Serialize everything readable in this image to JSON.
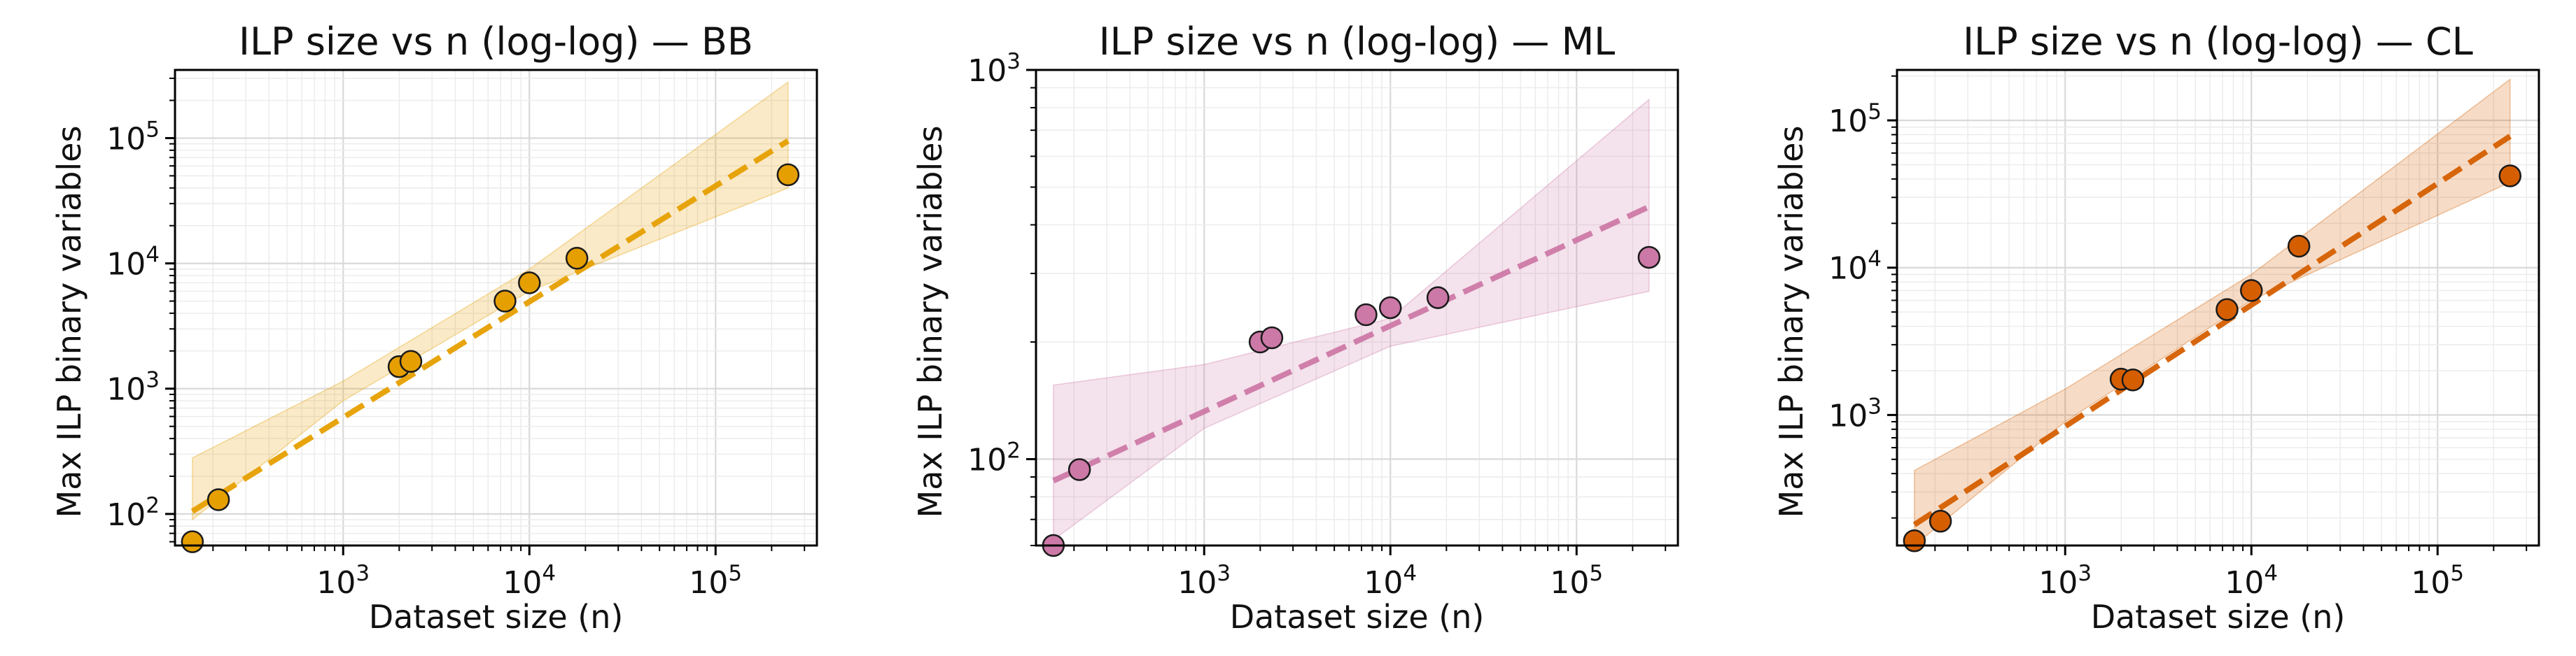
{
  "chart_data": [
    {
      "type": "scatter",
      "title": "ILP size vs n (log-log) — BB",
      "xlabel": "Dataset size (n)",
      "ylabel": "Max ILP binary variables",
      "xscale": "log",
      "yscale": "log",
      "xlim": [
        125,
        350000
      ],
      "ylim": [
        56,
        350000
      ],
      "grid": true,
      "color": "#E69F00",
      "x_ticks": [
        {
          "value": 1000,
          "base": "10",
          "exp": "3"
        },
        {
          "value": 10000,
          "base": "10",
          "exp": "4"
        },
        {
          "value": 100000,
          "base": "10",
          "exp": "5"
        }
      ],
      "y_ticks": [
        {
          "value": 100,
          "base": "10",
          "exp": "2"
        },
        {
          "value": 1000,
          "base": "10",
          "exp": "3"
        },
        {
          "value": 10000,
          "base": "10",
          "exp": "4"
        },
        {
          "value": 100000,
          "base": "10",
          "exp": "5"
        }
      ],
      "points": {
        "x": [
          155,
          214,
          1996,
          2310,
          7400,
          10000,
          18000,
          245000
        ],
        "y": [
          60,
          130,
          1500,
          1650,
          5000,
          7000,
          11000,
          51000
        ]
      },
      "fit_line": {
        "x": [
          155,
          245000
        ],
        "y": [
          105,
          95000
        ]
      },
      "band": {
        "x": [
          155,
          1000,
          10000,
          245000
        ],
        "upper": [
          280,
          1150,
          9000,
          280000
        ],
        "lower": [
          90,
          800,
          6000,
          40000
        ]
      }
    },
    {
      "type": "scatter",
      "title": "ILP size vs n (log-log) — ML",
      "xlabel": "Dataset size (n)",
      "ylabel": "Max ILP binary variables",
      "xscale": "log",
      "yscale": "log",
      "xlim": [
        125,
        350000
      ],
      "ylim": [
        60,
        1000
      ],
      "grid": true,
      "color": "#CC79A7",
      "x_ticks": [
        {
          "value": 1000,
          "base": "10",
          "exp": "3"
        },
        {
          "value": 10000,
          "base": "10",
          "exp": "4"
        },
        {
          "value": 100000,
          "base": "10",
          "exp": "5"
        }
      ],
      "y_ticks": [
        {
          "value": 100,
          "base": "10",
          "exp": "2"
        },
        {
          "value": 1000,
          "base": "10",
          "exp": "3"
        }
      ],
      "points": {
        "x": [
          155,
          214,
          1996,
          2310,
          7400,
          10000,
          18000,
          245000
        ],
        "y": [
          60,
          94,
          200,
          205,
          235,
          245,
          260,
          330
        ]
      },
      "fit_line": {
        "x": [
          155,
          245000
        ],
        "y": [
          88,
          445
        ]
      },
      "band": {
        "x": [
          155,
          1000,
          10000,
          245000
        ],
        "upper": [
          155,
          175,
          230,
          840
        ],
        "lower": [
          62,
          120,
          195,
          270
        ]
      }
    },
    {
      "type": "scatter",
      "title": "ILP size vs n (log-log) — CL",
      "xlabel": "Dataset size (n)",
      "ylabel": "Max ILP binary variables",
      "xscale": "log",
      "yscale": "log",
      "xlim": [
        125,
        350000
      ],
      "ylim": [
        130,
        220000
      ],
      "grid": true,
      "color": "#D55E00",
      "x_ticks": [
        {
          "value": 1000,
          "base": "10",
          "exp": "3"
        },
        {
          "value": 10000,
          "base": "10",
          "exp": "4"
        },
        {
          "value": 100000,
          "base": "10",
          "exp": "5"
        }
      ],
      "y_ticks": [
        {
          "value": 1000,
          "base": "10",
          "exp": "3"
        },
        {
          "value": 10000,
          "base": "10",
          "exp": "4"
        },
        {
          "value": 100000,
          "base": "10",
          "exp": "5"
        }
      ],
      "points": {
        "x": [
          155,
          214,
          1996,
          2310,
          7400,
          10000,
          18000,
          245000
        ],
        "y": [
          140,
          190,
          1750,
          1730,
          5200,
          7000,
          14000,
          42000
        ]
      },
      "fit_line": {
        "x": [
          155,
          245000
        ],
        "y": [
          180,
          78000
        ]
      },
      "band": {
        "x": [
          155,
          1000,
          10000,
          245000
        ],
        "upper": [
          420,
          1500,
          9000,
          190000
        ],
        "lower": [
          130,
          900,
          6000,
          38000
        ]
      }
    }
  ]
}
